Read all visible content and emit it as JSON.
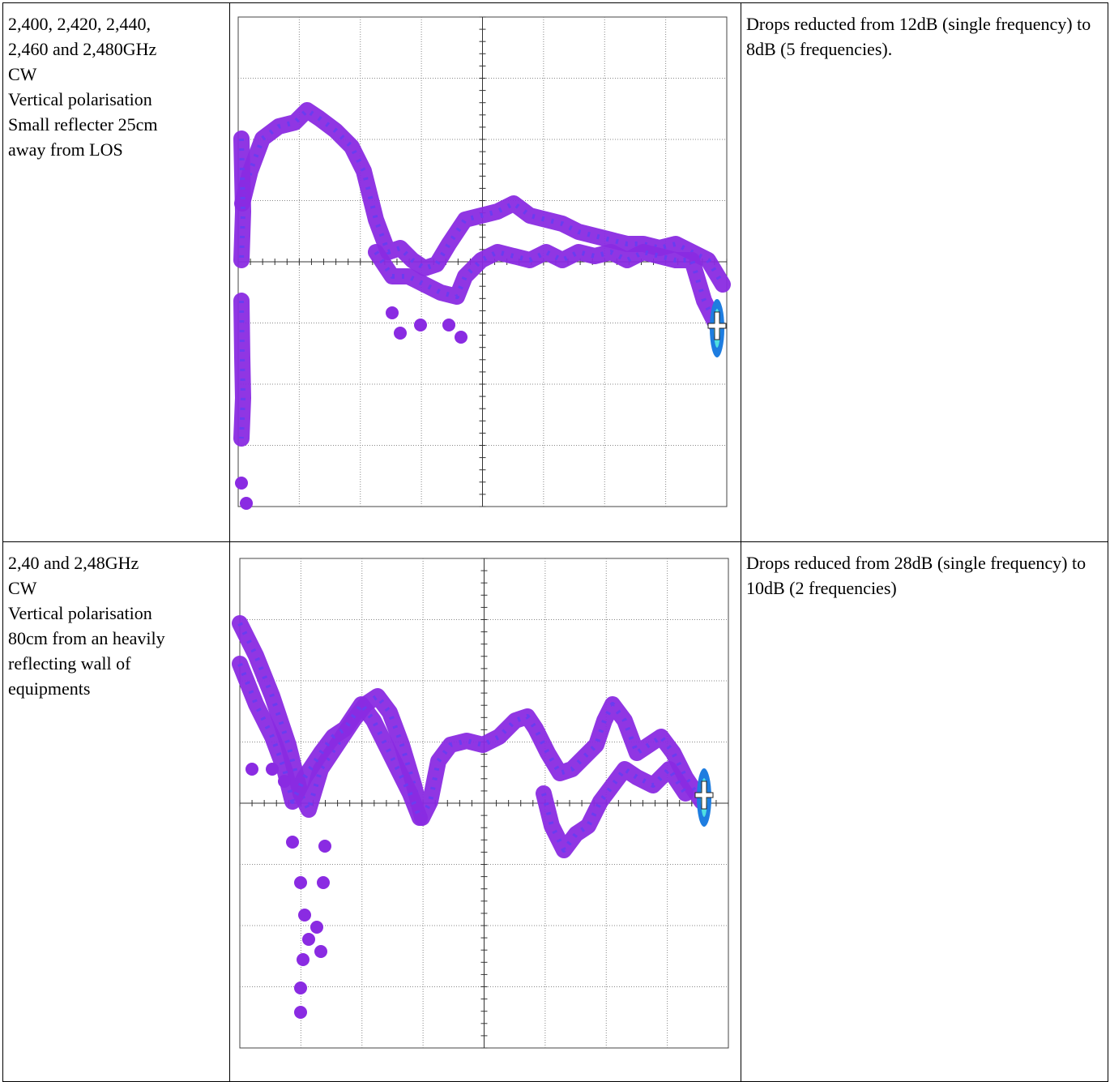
{
  "table": {
    "rows": [
      {
        "description": [
          "2,400, 2,420, 2,440,",
          "2,460 and 2,480GHz",
          "CW",
          "Vertical polarisation",
          "Small reflecter 25cm",
          "away from LOS"
        ],
        "comment": "Drops reducted from 12dB (single frequency) to 8dB (5 frequencies)."
      },
      {
        "description": [
          "2,40 and 2,48GHz",
          "CW",
          "Vertical polarisation",
          "80cm from an heavily",
          "reflecting wall of",
          "equipments"
        ],
        "comment": "Drops reduced from 28dB (single frequency) to 10dB (2 frequencies)"
      }
    ]
  }
}
